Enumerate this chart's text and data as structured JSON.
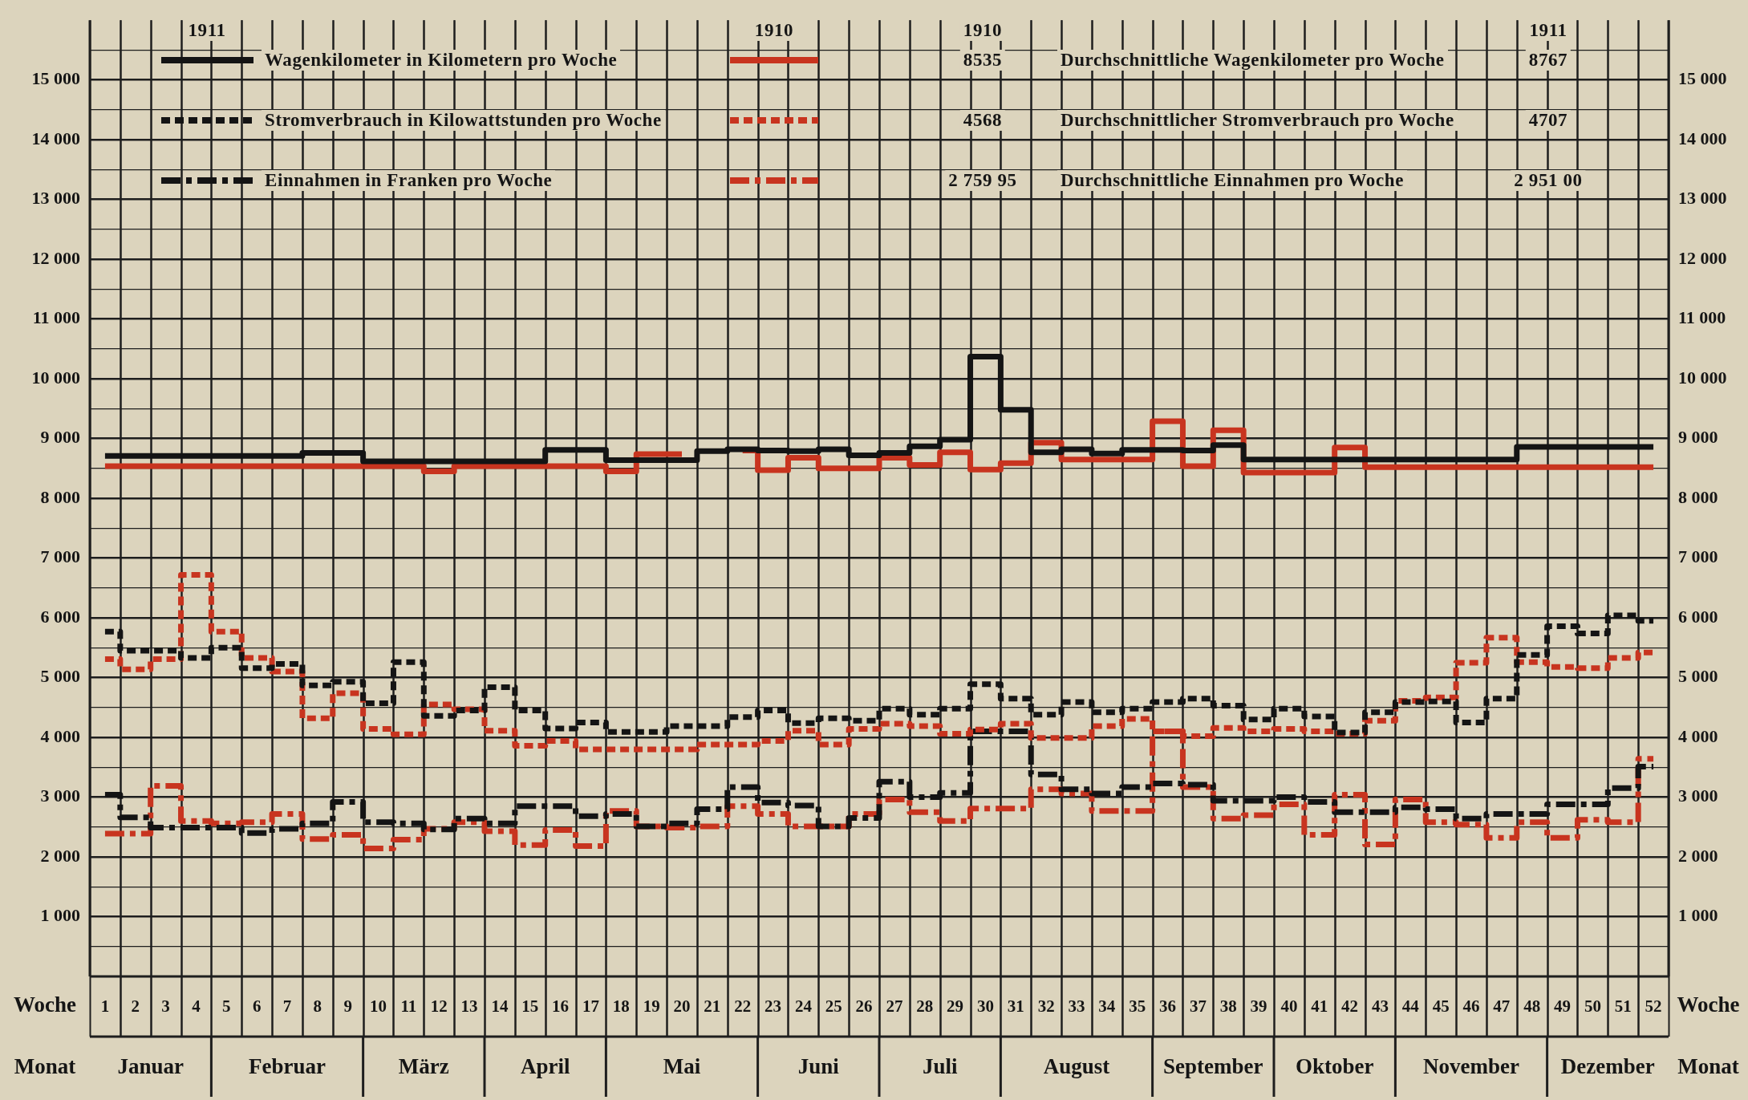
{
  "chart_data": {
    "type": "step",
    "x": [
      1,
      2,
      3,
      4,
      5,
      6,
      7,
      8,
      9,
      10,
      11,
      12,
      13,
      14,
      15,
      16,
      17,
      18,
      19,
      20,
      21,
      22,
      23,
      24,
      25,
      26,
      27,
      28,
      29,
      30,
      31,
      32,
      33,
      34,
      35,
      36,
      37,
      38,
      39,
      40,
      41,
      42,
      43,
      44,
      45,
      46,
      47,
      48,
      49,
      50,
      51,
      52
    ],
    "xlabel": "Woche",
    "xlim": [
      0.5,
      52.5
    ],
    "xticks": [
      1,
      2,
      3,
      4,
      5,
      6,
      7,
      8,
      9,
      10,
      11,
      12,
      13,
      14,
      15,
      16,
      17,
      18,
      19,
      20,
      21,
      22,
      23,
      24,
      25,
      26,
      27,
      28,
      29,
      30,
      31,
      32,
      33,
      34,
      35,
      36,
      37,
      38,
      39,
      40,
      41,
      42,
      43,
      44,
      45,
      46,
      47,
      48,
      49,
      50,
      51,
      52
    ],
    "ylim": [
      0,
      16000
    ],
    "yticks": [
      {
        "value": 500,
        "label": null
      },
      {
        "value": 1000,
        "label": "1 000"
      },
      {
        "value": 1500,
        "label": null
      },
      {
        "value": 2000,
        "label": "2 000"
      },
      {
        "value": 2500,
        "label": null
      },
      {
        "value": 3000,
        "label": "3 000"
      },
      {
        "value": 3500,
        "label": null
      },
      {
        "value": 4000,
        "label": "4 000"
      },
      {
        "value": 4500,
        "label": null
      },
      {
        "value": 5000,
        "label": "5 000"
      },
      {
        "value": 5500,
        "label": null
      },
      {
        "value": 6000,
        "label": "6 000"
      },
      {
        "value": 6500,
        "label": null
      },
      {
        "value": 7000,
        "label": "7 000"
      },
      {
        "value": 7500,
        "label": null
      },
      {
        "value": 8000,
        "label": "8 000"
      },
      {
        "value": 8500,
        "label": null
      },
      {
        "value": 9000,
        "label": "9 000"
      },
      {
        "value": 9500,
        "label": null
      },
      {
        "value": 10000,
        "label": "10 000"
      },
      {
        "value": 10500,
        "label": null
      },
      {
        "value": 11000,
        "label": "11 000"
      },
      {
        "value": 11500,
        "label": null
      },
      {
        "value": 12000,
        "label": "12 000"
      },
      {
        "value": 12500,
        "label": null
      },
      {
        "value": 13000,
        "label": "13 000"
      },
      {
        "value": 13500,
        "label": null
      },
      {
        "value": 14000,
        "label": "14 000"
      },
      {
        "value": 14500,
        "label": null
      },
      {
        "value": 15000,
        "label": "15 000"
      },
      {
        "value": 15500,
        "label": null
      }
    ],
    "y2lim": [
      0,
      16000
    ],
    "y2ticks": [
      {
        "value": 500,
        "label": null
      },
      {
        "value": 1000,
        "label": "1 000"
      },
      {
        "value": 1500,
        "label": null
      },
      {
        "value": 2000,
        "label": "2 000"
      },
      {
        "value": 2500,
        "label": null
      },
      {
        "value": 3000,
        "label": "3 000"
      },
      {
        "value": 3500,
        "label": null
      },
      {
        "value": 4000,
        "label": "4 000"
      },
      {
        "value": 4500,
        "label": null
      },
      {
        "value": 5000,
        "label": "5 000"
      },
      {
        "value": 5500,
        "label": null
      },
      {
        "value": 6000,
        "label": "6 000"
      },
      {
        "value": 6500,
        "label": null
      },
      {
        "value": 7000,
        "label": "7 000"
      },
      {
        "value": 7500,
        "label": null
      },
      {
        "value": 8000,
        "label": "8 000"
      },
      {
        "value": 8500,
        "label": null
      },
      {
        "value": 9000,
        "label": "9 000"
      },
      {
        "value": 9500,
        "label": null
      },
      {
        "value": 10000,
        "label": "10 000"
      },
      {
        "value": 10500,
        "label": null
      },
      {
        "value": 11000,
        "label": "11 000"
      },
      {
        "value": 11500,
        "label": null
      },
      {
        "value": 12000,
        "label": "12 000"
      },
      {
        "value": 12500,
        "label": null
      },
      {
        "value": 13000,
        "label": "13 000"
      },
      {
        "value": 13500,
        "label": null
      },
      {
        "value": 14000,
        "label": "14 000"
      },
      {
        "value": 14500,
        "label": null
      },
      {
        "value": 15000,
        "label": "15 000"
      },
      {
        "value": 15500,
        "label": null
      }
    ],
    "grid": true,
    "legend": "top",
    "series": [
      {
        "name": "Wagenkilometer in Kilometern pro Woche",
        "color": "#141414",
        "line_style": "solid",
        "values": [
          8710,
          8710,
          8710,
          8710,
          8710,
          8710,
          8710,
          8760,
          8760,
          8620,
          8620,
          8620,
          8620,
          8620,
          8620,
          8810,
          8810,
          8640,
          8640,
          8640,
          8790,
          8820,
          8800,
          8790,
          8820,
          8720,
          8760,
          8870,
          8980,
          10370,
          9480,
          8770,
          8820,
          8750,
          8810,
          8810,
          8800,
          8890,
          8650,
          8650,
          8650,
          8650,
          8650,
          8650,
          8650,
          8650,
          8650,
          8860,
          8860,
          8860,
          8860,
          8860
        ]
      },
      {
        "color": "#c8341f",
        "line_style": "solid",
        "values": [
          8540,
          8540,
          8540,
          8540,
          8540,
          8540,
          8540,
          8540,
          8540,
          8540,
          8540,
          8450,
          8540,
          8540,
          8540,
          8540,
          8540,
          8450,
          8740,
          8740,
          null,
          8800,
          8470,
          8680,
          8500,
          8500,
          8680,
          8560,
          8770,
          8480,
          8590,
          8930,
          8650,
          8650,
          8650,
          9290,
          8540,
          9140,
          8430,
          8430,
          8430,
          8850,
          8520,
          8520,
          8520,
          8520,
          8520,
          8520,
          8520,
          8520,
          8520,
          8520
        ]
      },
      {
        "name": "Stromverbrauch in Kilowattstunden pro Woche",
        "color": "#141414",
        "line_style": "dotted",
        "values": [
          5770,
          5450,
          5450,
          5330,
          5500,
          5160,
          5230,
          4870,
          4930,
          4570,
          5260,
          4360,
          4450,
          4840,
          4450,
          4150,
          4250,
          4090,
          4090,
          4190,
          4190,
          4340,
          4450,
          4240,
          4320,
          4280,
          4480,
          4380,
          4480,
          4890,
          4650,
          4380,
          4590,
          4420,
          4480,
          4590,
          4650,
          4530,
          4300,
          4480,
          4350,
          4080,
          4420,
          4590,
          4600,
          4250,
          4650,
          5380,
          5860,
          5740,
          6040,
          5950
        ]
      },
      {
        "color": "#c8341f",
        "line_style": "dotted",
        "values": [
          5310,
          5140,
          5310,
          6720,
          5770,
          5330,
          5100,
          4320,
          4740,
          4140,
          4050,
          4550,
          4470,
          4110,
          3860,
          3940,
          3800,
          3800,
          3800,
          3800,
          3880,
          3880,
          3940,
          4110,
          3880,
          4140,
          4230,
          4190,
          4060,
          4130,
          4230,
          3990,
          3990,
          4190,
          4310,
          4100,
          4020,
          4160,
          4100,
          4140,
          4100,
          4060,
          4280,
          4610,
          4670,
          5250,
          5670,
          5260,
          5180,
          5160,
          5330,
          5420
        ]
      },
      {
        "name": "Einnahmen in Franken pro Woche",
        "color": "#141414",
        "line_style": "dashed",
        "values": [
          3040,
          2660,
          2490,
          2490,
          2490,
          2400,
          2470,
          2560,
          2920,
          2580,
          2560,
          2460,
          2640,
          2560,
          2850,
          2850,
          2680,
          2720,
          2510,
          2560,
          2800,
          3170,
          2910,
          2860,
          2510,
          2650,
          3260,
          3000,
          3070,
          4100,
          4100,
          3380,
          3130,
          3060,
          3170,
          3230,
          3210,
          2940,
          2940,
          3000,
          2920,
          2750,
          2750,
          2830,
          2800,
          2640,
          2720,
          2720,
          2880,
          2880,
          3150,
          3510
        ]
      },
      {
        "color": "#c8341f",
        "line_style": "dashed",
        "values": [
          2390,
          2390,
          3190,
          2600,
          2560,
          2580,
          2720,
          2300,
          2370,
          2140,
          2290,
          2470,
          2580,
          2430,
          2200,
          2450,
          2180,
          2770,
          2510,
          2490,
          2510,
          2850,
          2720,
          2510,
          2510,
          2720,
          2960,
          2750,
          2600,
          2810,
          2810,
          3130,
          3060,
          2770,
          2770,
          4100,
          3170,
          2640,
          2700,
          2880,
          2370,
          3040,
          2210,
          2960,
          2580,
          2540,
          2320,
          2580,
          2320,
          2620,
          2580,
          3640
        ]
      }
    ],
    "annotations": [
      "1911",
      "1910",
      "1910",
      "1911",
      "Durchschnittliche Wagenkilometer pro Woche",
      "8535",
      "8767",
      "Durchschnittlicher Stromverbrauch pro Woche",
      "4568",
      "4707",
      "Durchschnittliche Einnahmen pro Woche",
      "2 759 95",
      "2 951 00",
      "Monat",
      "Januar",
      "Februar",
      "März",
      "April",
      "Mai",
      "Juni",
      "Juli",
      "August",
      "September",
      "Oktober",
      "November",
      "Dezember"
    ]
  }
}
